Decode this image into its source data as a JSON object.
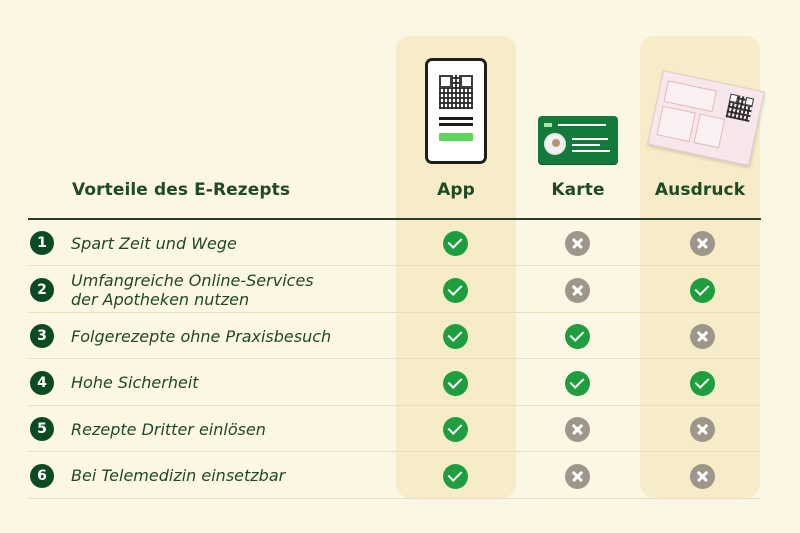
{
  "header": {
    "title": "Vorteile des E-Rezepts",
    "columns": [
      "App",
      "Karte",
      "Ausdruck"
    ]
  },
  "rows": [
    {
      "number": "1",
      "label": "Spart Zeit und Wege",
      "values": [
        "yes",
        "no",
        "no"
      ]
    },
    {
      "number": "2",
      "label": "Umfangreiche Online-Services\nder Apotheken nutzen",
      "values": [
        "yes",
        "no",
        "yes"
      ]
    },
    {
      "number": "3",
      "label": "Folgerezepte ohne Praxisbesuch",
      "values": [
        "yes",
        "yes",
        "no"
      ]
    },
    {
      "number": "4",
      "label": "Hohe Sicherheit",
      "values": [
        "yes",
        "yes",
        "yes"
      ]
    },
    {
      "number": "5",
      "label": "Rezepte Dritter einlösen",
      "values": [
        "yes",
        "no",
        "no"
      ]
    },
    {
      "number": "6",
      "label": "Bei Telemedizin einsetzbar",
      "values": [
        "yes",
        "no",
        "no"
      ]
    }
  ],
  "icons": {
    "yes": "check-circle-icon",
    "no": "x-circle-icon",
    "illustrations": [
      "smartphone-qr-icon",
      "health-card-icon",
      "printout-qr-icon"
    ]
  },
  "colors": {
    "background": "#fcf6e4",
    "highlight_column": "#f6edc8",
    "text": "#1f4a23",
    "yes": "#1f9e3f",
    "no": "#9e968a",
    "number_badge": "#0c4a23"
  }
}
